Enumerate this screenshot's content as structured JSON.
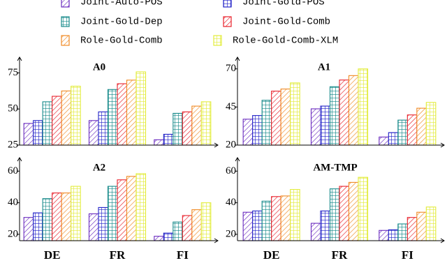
{
  "chart_data": [
    {
      "type": "bar",
      "title": "A0",
      "categories": [
        null,
        null,
        null
      ],
      "series": [
        {
          "name": "Joint-Auto-POS",
          "color": "#6a2bbf",
          "pattern": "diagonal",
          "values": [
            40,
            42,
            28.7
          ]
        },
        {
          "name": "Joint-Gold-POS",
          "color": "#2424c8",
          "pattern": "grid",
          "values": [
            42,
            48,
            32.5
          ]
        },
        {
          "name": "Joint-Gold-Dep",
          "color": "#178a8a",
          "pattern": "grid",
          "values": [
            55,
            63.5,
            47
          ]
        },
        {
          "name": "Joint-Gold-Comb",
          "color": "#e8202a",
          "pattern": "diagonal",
          "values": [
            58.8,
            67.5,
            48
          ]
        },
        {
          "name": "Role-Gold-Comb",
          "color": "#f08a24",
          "pattern": "diagonal",
          "values": [
            62.5,
            70,
            52
          ]
        },
        {
          "name": "Role-Gold-Comb-XLM",
          "color": "#e2ec3a",
          "pattern": "grid",
          "values": [
            65.8,
            75.7,
            55
          ]
        }
      ],
      "ylim": [
        25,
        82
      ],
      "yticks": [
        25,
        50,
        75
      ]
    },
    {
      "type": "bar",
      "title": "A1",
      "categories": [
        null,
        null,
        null
      ],
      "series": [
        {
          "values": [
            37,
            43.8,
            25.3
          ]
        },
        {
          "values": [
            39.4,
            45.6,
            28.2
          ]
        },
        {
          "values": [
            49.4,
            58.3,
            36.4
          ]
        },
        {
          "values": [
            55.4,
            62.7,
            39.8
          ]
        },
        {
          "values": [
            56.8,
            65.6,
            44.2
          ]
        },
        {
          "values": [
            60.8,
            70,
            48
          ]
        }
      ],
      "ylim": [
        20,
        74
      ],
      "yticks": [
        20,
        45,
        70
      ]
    },
    {
      "type": "bar",
      "title": "A2",
      "categories": [
        "DE",
        "FR",
        "FI"
      ],
      "series": [
        {
          "values": [
            30.7,
            33,
            18.8
          ]
        },
        {
          "values": [
            33.6,
            37,
            20.8
          ]
        },
        {
          "values": [
            42.6,
            50.4,
            27.8
          ]
        },
        {
          "values": [
            46.2,
            54.5,
            31.9
          ]
        },
        {
          "values": [
            46.2,
            56.7,
            35.6
          ]
        },
        {
          "values": [
            50.4,
            58.4,
            40
          ]
        }
      ],
      "ylim": [
        16,
        65
      ],
      "yticks": [
        20,
        40,
        60
      ]
    },
    {
      "type": "bar",
      "title": "AM-TMP",
      "categories": [
        "DE",
        "FR",
        "FI"
      ],
      "series": [
        {
          "values": [
            34,
            27,
            22.5
          ]
        },
        {
          "values": [
            34.8,
            34.8,
            22.9
          ]
        },
        {
          "values": [
            41,
            48.8,
            26.6
          ]
        },
        {
          "values": [
            43.9,
            50.4,
            30.7
          ]
        },
        {
          "values": [
            44.3,
            52.9,
            34
          ]
        },
        {
          "values": [
            48.4,
            56.1,
            37.3
          ]
        }
      ],
      "ylim": [
        16,
        65
      ],
      "yticks": [
        20,
        40,
        60
      ]
    }
  ]
}
